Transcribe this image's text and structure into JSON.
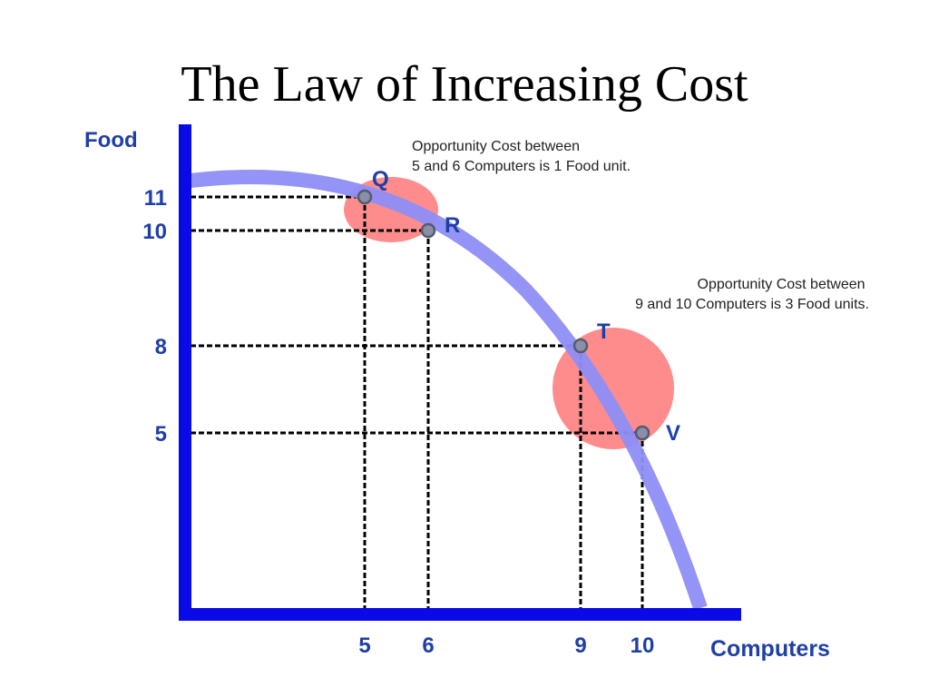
{
  "title": "The Law of Increasing Cost",
  "colors": {
    "axis": "#0a0ae6",
    "curve": "#8e8ef5",
    "highlight": "#ff6f6f",
    "guide": "#000000",
    "label": "#1f3fa6"
  },
  "chart_data": {
    "type": "line",
    "xlabel": "Computers",
    "ylabel": "Food",
    "x_ticks": [
      "5",
      "6",
      "9",
      "10"
    ],
    "y_ticks": [
      "11",
      "10",
      "8",
      "5"
    ],
    "points": [
      {
        "name": "Q",
        "x": 5,
        "y": 11
      },
      {
        "name": "R",
        "x": 6,
        "y": 10
      },
      {
        "name": "T",
        "x": 9,
        "y": 8
      },
      {
        "name": "V",
        "x": 10,
        "y": 5
      }
    ],
    "annotations": [
      {
        "lines": [
          "Opportunity Cost between",
          "5 and 6 Computers is 1 Food unit."
        ]
      },
      {
        "lines": [
          "Opportunity Cost between",
          "9 and 10 Computers is 3 Food units."
        ]
      }
    ]
  }
}
